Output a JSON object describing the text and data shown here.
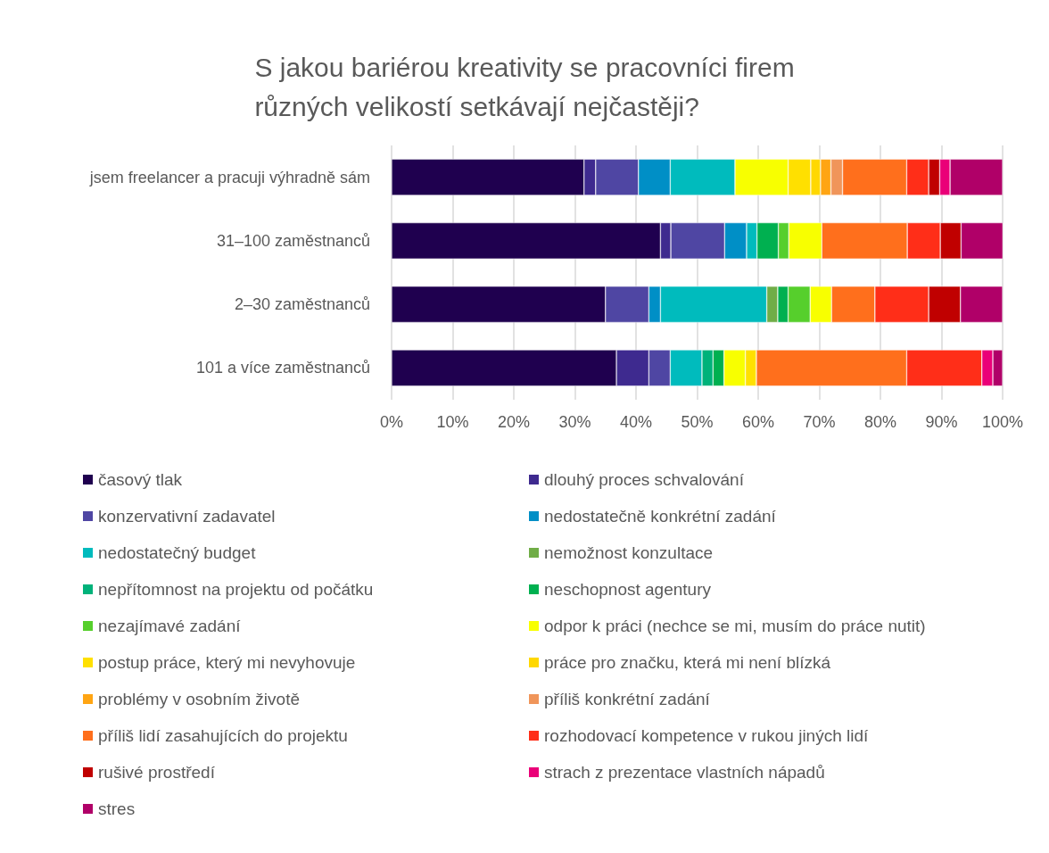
{
  "chart_data": {
    "type": "bar",
    "orientation": "horizontal",
    "stacked": true,
    "title": "S jakou bariérou kreativity se pracovníci firem různých velikostí setkávají nejčastěji?",
    "categories": [
      "jsem freelancer a pracuji výhradně sám",
      "31–100 zaměstnanců",
      "2–30 zaměstnanců",
      "101 a více zaměstnanců"
    ],
    "xlim": [
      0,
      100
    ],
    "xticks": [
      {
        "value": 0,
        "label": "0%"
      },
      {
        "value": 10,
        "label": "10%"
      },
      {
        "value": 20,
        "label": "20%"
      },
      {
        "value": 30,
        "label": "30%"
      },
      {
        "value": 40,
        "label": "40%"
      },
      {
        "value": 50,
        "label": "50%"
      },
      {
        "value": 60,
        "label": "60%"
      },
      {
        "value": 70,
        "label": "70%"
      },
      {
        "value": 80,
        "label": "80%"
      },
      {
        "value": 90,
        "label": "90%"
      },
      {
        "value": 100,
        "label": "100%"
      }
    ],
    "grid": "x",
    "legend": "bottom",
    "series": [
      {
        "name": "časový tlak",
        "color": "#1f004f",
        "values": [
          31.5,
          44.0,
          35.0,
          36.8
        ]
      },
      {
        "name": "dlouhý proces schvalování",
        "color": "#3e2a8f",
        "values": [
          1.9,
          1.7,
          null,
          5.3
        ]
      },
      {
        "name": "konzervativní zadavatel",
        "color": "#4f46a3",
        "values": [
          7.0,
          8.8,
          7.1,
          3.5
        ]
      },
      {
        "name": "nedostatečně konkrétní zadání",
        "color": "#008fc6",
        "values": [
          5.2,
          3.6,
          1.9,
          null
        ]
      },
      {
        "name": "nedostatečný budget",
        "color": "#00bbbd",
        "values": [
          10.6,
          1.7,
          17.4,
          5.2
        ]
      },
      {
        "name": "nemožnost konzultace",
        "color": "#70ad47",
        "values": [
          null,
          null,
          1.8,
          null
        ]
      },
      {
        "name": "nepřítomnost na projektu od počátku",
        "color": "#00b27a",
        "values": [
          null,
          null,
          null,
          1.8
        ]
      },
      {
        "name": "neschopnost agentury",
        "color": "#00b050",
        "values": [
          null,
          3.5,
          1.7,
          1.8
        ]
      },
      {
        "name": "nezajímavé zadání",
        "color": "#56cf2c",
        "values": [
          null,
          1.7,
          3.6,
          null
        ]
      },
      {
        "name": "odpor k práci (nechce se mi, musím do práce nutit)",
        "color": "#f8ff00",
        "values": [
          8.7,
          5.4,
          3.5,
          3.5
        ]
      },
      {
        "name": "postup práce, který mi nevyhovuje",
        "color": "#ffe000",
        "values": [
          3.7,
          null,
          null,
          1.8
        ]
      },
      {
        "name": "práce pro značku, která mi není blízká",
        "color": "#ffd800",
        "values": [
          1.6,
          null,
          null,
          null
        ]
      },
      {
        "name": "problémy v osobním životě",
        "color": "#ffa513",
        "values": [
          1.7,
          null,
          null,
          null
        ]
      },
      {
        "name": "příliš konkrétní zadání",
        "color": "#f0955a",
        "values": [
          1.9,
          null,
          null,
          null
        ]
      },
      {
        "name": "příliš lidí zasahujících do projektu",
        "color": "#ff6f1c",
        "values": [
          10.5,
          14.0,
          7.1,
          24.6
        ]
      },
      {
        "name": "rozhodovací kompetence v rukou jiných lidí",
        "color": "#ff2e18",
        "values": [
          3.6,
          5.4,
          8.8,
          12.3
        ]
      },
      {
        "name": "rušivé prostředí",
        "color": "#c00000",
        "values": [
          1.8,
          3.4,
          5.2,
          null
        ]
      },
      {
        "name": "strach z prezentace vlastních nápadů",
        "color": "#ea0078",
        "values": [
          1.7,
          null,
          null,
          1.8
        ]
      },
      {
        "name": "stres",
        "color": "#b00068",
        "values": [
          8.6,
          6.9,
          6.9,
          1.6
        ]
      }
    ]
  }
}
